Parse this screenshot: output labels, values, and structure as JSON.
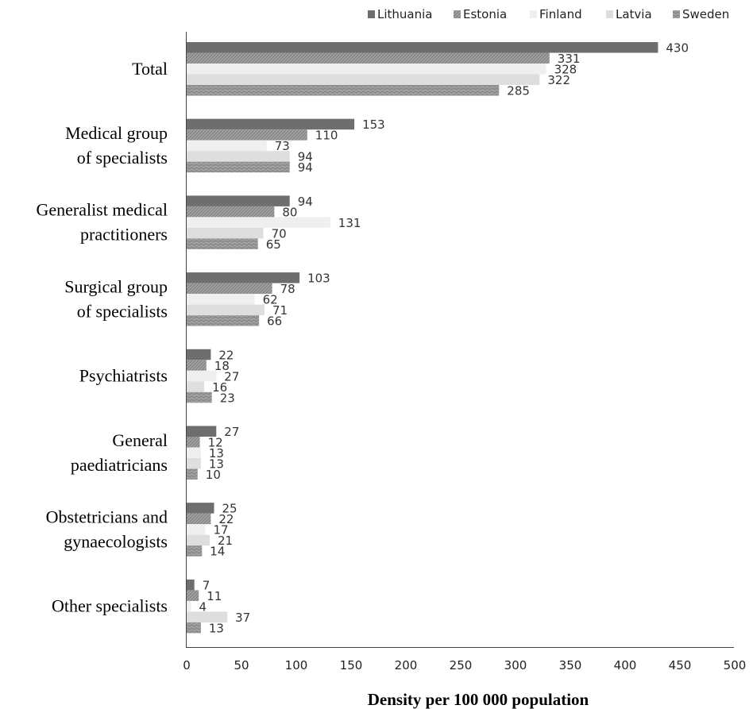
{
  "chart_data": {
    "type": "bar",
    "orientation": "horizontal",
    "title": "",
    "xlabel": "Density per 100 000 population",
    "ylabel": "",
    "xlim": [
      0,
      500
    ],
    "xticks": [
      0,
      50,
      100,
      150,
      200,
      250,
      300,
      350,
      400,
      450,
      500
    ],
    "grid": false,
    "legend_position": "top-right",
    "categories": [
      [
        "Total"
      ],
      [
        "Medical group",
        "of specialists"
      ],
      [
        "Generalist medical",
        "practitioners"
      ],
      [
        "Surgical group",
        "of specialists"
      ],
      [
        "Psychiatrists"
      ],
      [
        "General",
        "paediatricians"
      ],
      [
        "Obstetricians and",
        "gynaecologists"
      ],
      [
        "Other specialists"
      ]
    ],
    "series": [
      {
        "name": "Lithuania",
        "color": "#6e6e6e",
        "pattern": "solid",
        "values": [
          430,
          153,
          94,
          103,
          22,
          27,
          25,
          7
        ]
      },
      {
        "name": "Estonia",
        "color": "#9b9b9b",
        "pattern": "diagonal",
        "values": [
          331,
          110,
          80,
          78,
          18,
          12,
          22,
          11
        ]
      },
      {
        "name": "Finland",
        "color": "#efefef",
        "pattern": "solid",
        "values": [
          328,
          73,
          131,
          62,
          27,
          13,
          17,
          4
        ]
      },
      {
        "name": "Latvia",
        "color": "#dedede",
        "pattern": "solid",
        "values": [
          322,
          94,
          70,
          71,
          16,
          13,
          21,
          37
        ]
      },
      {
        "name": "Sweden",
        "color": "#8a8a8a",
        "pattern": "wave",
        "values": [
          285,
          94,
          65,
          66,
          23,
          10,
          14,
          13
        ]
      }
    ]
  }
}
